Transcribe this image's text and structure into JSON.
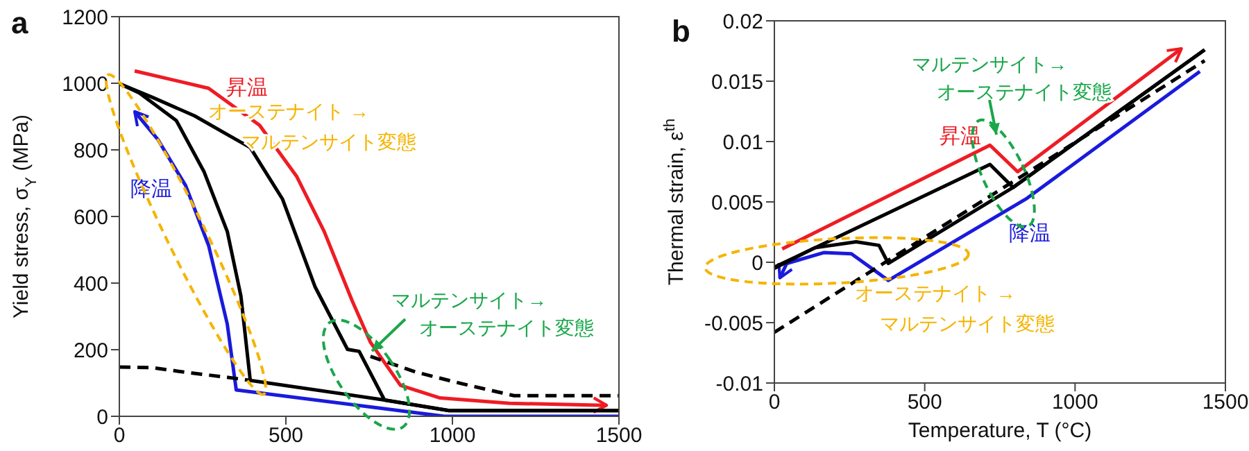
{
  "chart_data": [
    {
      "type": "line",
      "title": "a",
      "ylabel": "Yield stress, σ$_{Y}$ (MPa)",
      "xlim": [
        0,
        1500
      ],
      "xticks": [
        0,
        500,
        1000,
        1500
      ],
      "ylim": [
        0,
        1200
      ],
      "yticks": [
        0,
        200,
        400,
        600,
        800,
        1000,
        1200
      ],
      "grid": false,
      "legend": false,
      "marker": "none",
      "series": [
        {
          "name": "昇温",
          "color": "#ee1c24",
          "x": [
            46,
            268,
            421,
            532,
            615,
            699,
            754,
            844,
            963,
            1171,
            1463
          ],
          "values": [
            1037,
            985,
            874,
            721,
            555,
            347,
            222,
            93,
            55,
            39,
            33
          ]
        },
        {
          "name": "降温",
          "color": "#1a1adc",
          "x": [
            1500,
            976,
            754,
            351,
            324,
            268,
            199,
            115,
            46
          ],
          "values": [
            0,
            0,
            28,
            79,
            277,
            513,
            693,
            832,
            915
          ]
        },
        {
          "color": "#000000",
          "x": [
            0,
            101,
            226,
            324,
            393,
            490,
            588,
            685,
            720,
            796,
            990,
            1500
          ],
          "values": [
            999,
            957,
            902,
            846,
            807,
            652,
            388,
            201,
            195,
            49,
            17,
            17
          ]
        },
        {
          "color": "#000000",
          "x": [
            1500,
            990,
            796,
            393,
            365,
            324,
            254,
            171,
            60,
            0
          ],
          "values": [
            17,
            17,
            49,
            108,
            361,
            555,
            735,
            888,
            971,
            999
          ]
        },
        {
          "color": "#000000",
          "line_style": "dashed",
          "x": [
            0,
            100,
            200,
            300,
            393,
            550,
            754,
            893,
            1032,
            1185,
            1500
          ],
          "values": [
            148,
            146,
            132,
            120,
            108,
            null,
            180,
            132,
            97,
            62,
            62
          ]
        }
      ],
      "annotations": [
        "オーステナイト →\nマルテンサイト変態",
        "マルテンサイト→\nオーステナイト変態"
      ]
    },
    {
      "type": "line",
      "title": "b",
      "xlabel": "Temperature, T (°C)",
      "ylabel": "Thermal strain, ε$^{th}$",
      "xlim": [
        0,
        1500
      ],
      "xticks": [
        0,
        500,
        1000,
        1500
      ],
      "ylim": [
        -0.01,
        0.02
      ],
      "yticks": [
        -0.01,
        -0.005,
        0,
        0.005,
        0.01,
        0.015,
        0.02
      ],
      "grid": false,
      "legend": false,
      "marker": "none",
      "series": [
        {
          "name": "昇温",
          "color": "#ee1c24",
          "x": [
            26,
            717,
            809,
            1354
          ],
          "values": [
            0.0011,
            0.0097,
            0.0075,
            0.0177
          ]
        },
        {
          "name": "降温",
          "color": "#1a1adc",
          "x": [
            1415,
            840,
            379,
            256,
            164,
            41,
            18
          ],
          "values": [
            0.0158,
            0.0053,
            -0.0015,
            0.0007,
            0.0008,
            -0.0001,
            -0.0013
          ]
        },
        {
          "color": "#000000",
          "x": [
            0,
            717,
            794,
            1431
          ],
          "values": [
            -0.0004,
            0.0081,
            0.0062,
            0.0176
          ]
        },
        {
          "color": "#000000",
          "x": [
            1431,
            794,
            379,
            348,
            272,
            134,
            0
          ],
          "values": [
            0.0176,
            0.0062,
            -0.0001,
            0.0014,
            0.0017,
            0.0012,
            -0.0005
          ]
        },
        {
          "color": "#000000",
          "line_style": "dashed",
          "x": [
            0,
            1431
          ],
          "values": [
            -0.0058,
            0.0167
          ]
        }
      ],
      "annotations": [
        "マルテンサイト→\nオーステナイト変態",
        "オーステナイト →\nマルテンサイト変態"
      ]
    }
  ]
}
